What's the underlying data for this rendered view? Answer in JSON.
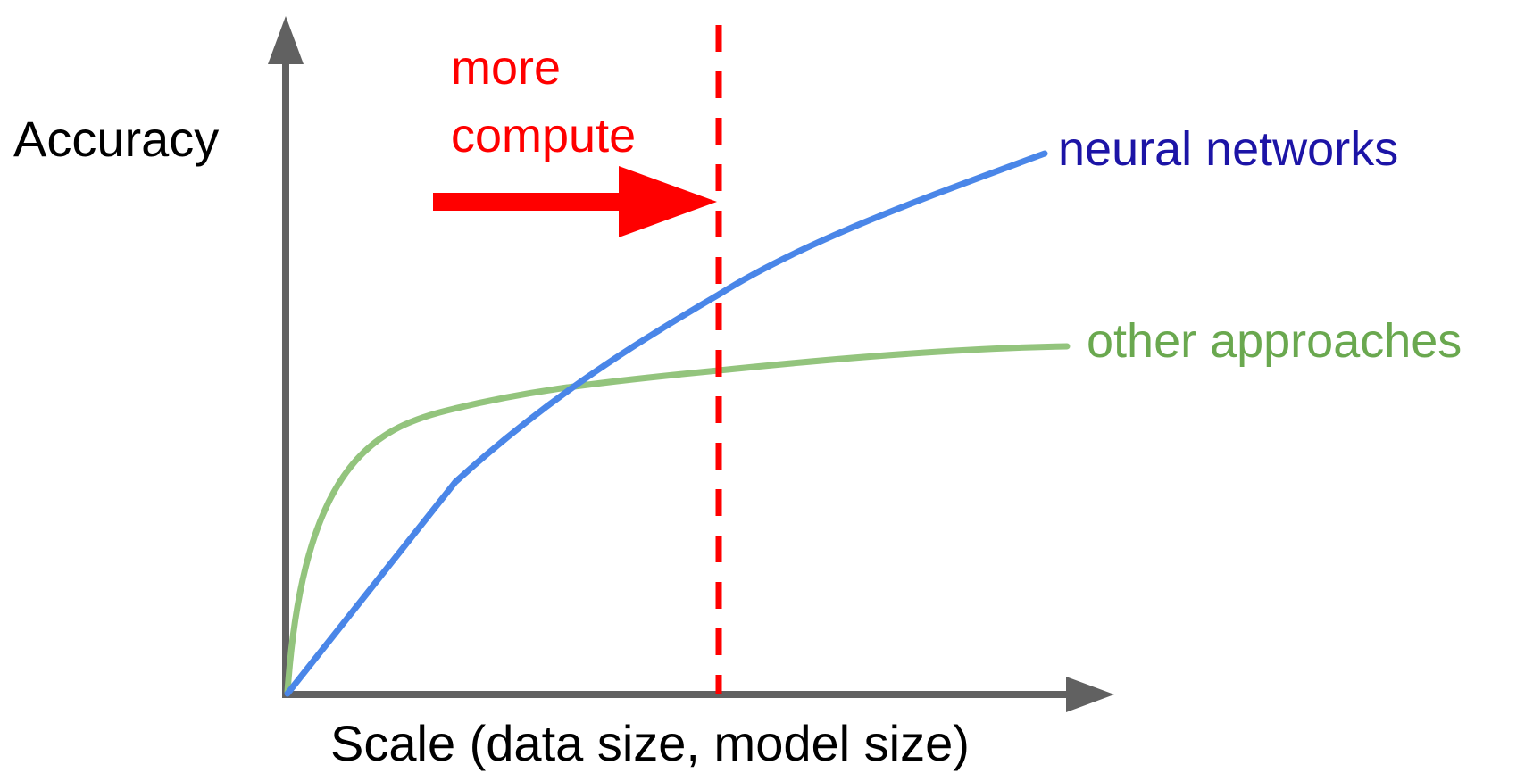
{
  "labels": {
    "y_axis": "Accuracy",
    "x_axis": "Scale (data size, model size)",
    "annotation_line1": "more",
    "annotation_line2": "compute",
    "neural": "neural networks",
    "other": "other approaches"
  },
  "colors": {
    "axis": "#616161",
    "neural": "#4a86e8",
    "neural_label": "#1c14a6",
    "other": "#93c47d",
    "other_label": "#6aa84f",
    "annotation": "#ff0000",
    "text": "#000000"
  },
  "curves": {
    "neural": {
      "name": "neural networks"
    },
    "other": {
      "name": "other approaches"
    }
  }
}
